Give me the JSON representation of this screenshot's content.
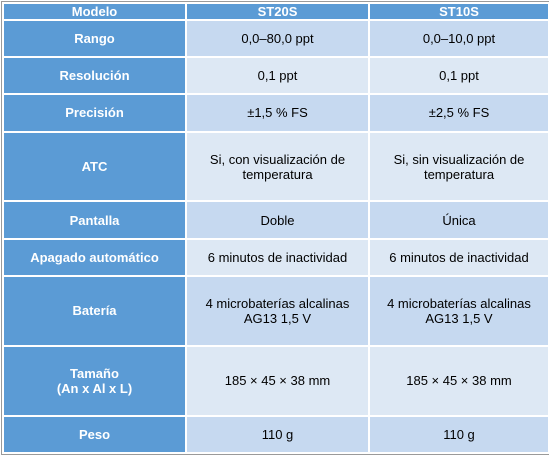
{
  "table": {
    "header": [
      "Modelo",
      "ST20S",
      "ST10S"
    ],
    "rows": [
      [
        "Rango",
        "0,0–80,0 ppt",
        "0,0–10,0 ppt"
      ],
      [
        "Resolución",
        "0,1 ppt",
        "0,1 ppt"
      ],
      [
        "Precisión",
        "±1,5 % FS",
        "±2,5 % FS"
      ],
      [
        "ATC",
        "Si, con visualización de temperatura",
        "Si, sin visualización de temperatura"
      ],
      [
        "Pantalla",
        "Doble",
        "Única"
      ],
      [
        "Apagado automático",
        "6 minutos de inactividad",
        "6 minutos de inactividad"
      ],
      [
        "Batería",
        "4 microbaterías alcalinas AG13 1,5 V",
        "4 microbaterías alcalinas AG13 1,5 V"
      ],
      [
        "Tamaño\n(An x Al x L)",
        "185 × 45 × 38 mm",
        "185 × 45 × 38 mm"
      ],
      [
        "Peso",
        "110 g",
        "110 g"
      ]
    ]
  }
}
